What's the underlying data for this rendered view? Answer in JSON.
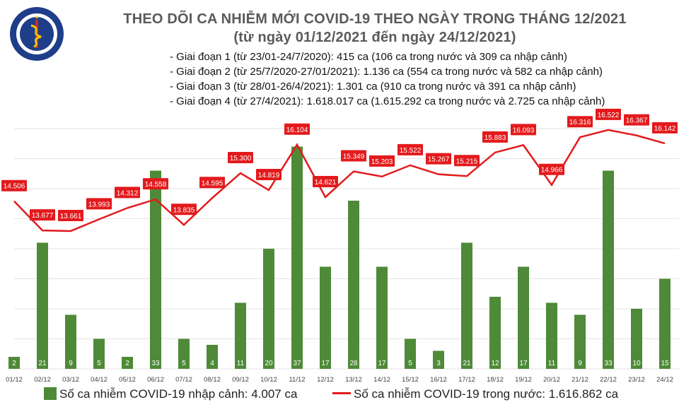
{
  "header": {
    "title_line1": "THEO DÕI CA NHIỄM MỚI COVID-19 THEO NGÀY TRONG THÁNG 12/2021",
    "title_line2": "(từ ngày 01/12/2021 đến ngày 24/12/2021)",
    "stages": [
      "- Giai đoạn 1 (từ 23/01-24/7/2020): 415 ca (106 ca trong nước và 309 ca nhập cảnh)",
      "- Giai đoạn 2 (từ 25/7/2020-27/01/2021): 1.136 ca (554 ca trong nước và 582 ca nhập cảnh)",
      "- Giai đoạn 3 (từ 28/01-26/4/2021): 1.301 ca (910 ca trong nước và 391 ca nhập cảnh)",
      "- Giai đoạn 4 (từ 27/4/2021): 1.618.017 ca (1.615.292 ca trong nước và 2.725 ca nhập cảnh)"
    ]
  },
  "logo": {
    "text_top": "BỘ Y TẾ",
    "text_bottom": "MINISTRY OF HEALTH"
  },
  "legend": {
    "bars": "Số ca nhiễm COVID-19 nhập cảnh: 4.007 ca",
    "line": "Số ca nhiễm COVID-19 trong nước: 1.616.862 ca"
  },
  "chart_data": {
    "type": "bar+line",
    "categories": [
      "01/12",
      "02/12",
      "03/12",
      "04/12",
      "05/12",
      "06/12",
      "07/12",
      "08/12",
      "09/12",
      "10/12",
      "11/12",
      "12/12",
      "13/12",
      "14/12",
      "15/12",
      "16/12",
      "17/12",
      "18/12",
      "19/12",
      "20/12",
      "21/12",
      "22/12",
      "23/12",
      "24/12"
    ],
    "series": [
      {
        "name": "Số ca nhiễm COVID-19 nhập cảnh: 4.007 ca",
        "kind": "bar",
        "values": [
          2,
          21,
          9,
          5,
          2,
          33,
          5,
          4,
          11,
          20,
          37,
          17,
          28,
          17,
          5,
          3,
          21,
          12,
          17,
          11,
          9,
          33,
          10,
          15
        ],
        "labels": [
          "2",
          "21",
          "9",
          "5",
          "2",
          "33",
          "5",
          "4",
          "11",
          "20",
          "37",
          "17",
          "28",
          "17",
          "5",
          "3",
          "21",
          "12",
          "17",
          "11",
          "9",
          "33",
          "10",
          "15"
        ],
        "color": "#4e8a37"
      },
      {
        "name": "Số ca nhiễm COVID-19 trong nước: 1.616.862 ca",
        "kind": "line",
        "values": [
          14506,
          13677,
          13661,
          13993,
          14312,
          14558,
          13835,
          14595,
          15300,
          14819,
          16104,
          14621,
          15349,
          15203,
          15522,
          15267,
          15215,
          15883,
          16093,
          14966,
          16316,
          16522,
          16367,
          16142
        ],
        "labels": [
          "14.506",
          "13.677",
          "13.661",
          "13.993",
          "14.312",
          "14.558",
          "13.835",
          "14.595",
          "15.300",
          "14.819",
          "16.104",
          "14.621",
          "15.349",
          "15.203",
          "15.522",
          "15.267",
          "15.215",
          "15.883",
          "16.093",
          "14.966",
          "16.316",
          "16.522",
          "16.367",
          "16.142"
        ],
        "color": "#e31a1c"
      }
    ],
    "grid": true,
    "legend_position": "bottom"
  }
}
